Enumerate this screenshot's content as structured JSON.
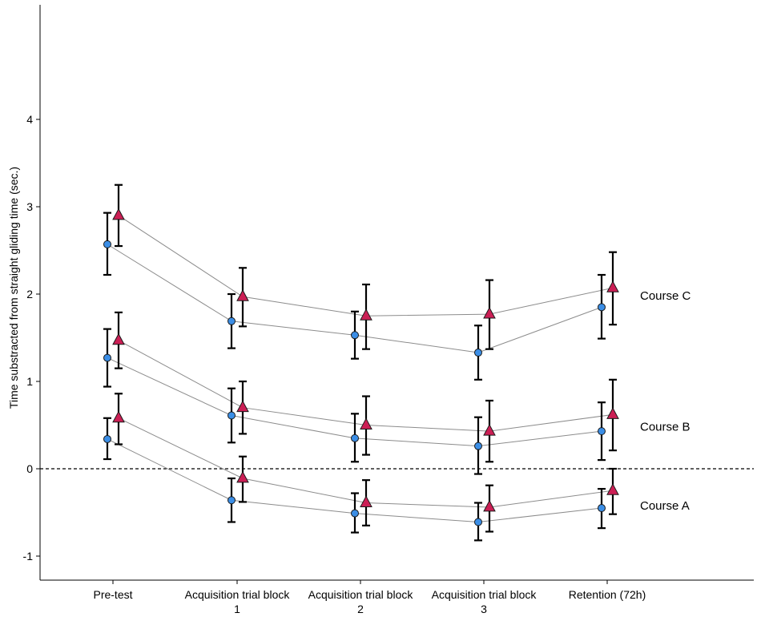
{
  "chart_data": {
    "type": "line",
    "title": "",
    "xlabel": "",
    "ylabel": "Time substracted from straight gliding time (sec.)",
    "ylim": [
      -1.3,
      5.2
    ],
    "yticks": [
      -1,
      0,
      1,
      2,
      3,
      4
    ],
    "grid": false,
    "reference_line": {
      "y": 0,
      "style": "dashed"
    },
    "categories": [
      [
        "Pre-test"
      ],
      [
        "Acquisition trial block",
        "1"
      ],
      [
        "Acquisition trial block",
        "2"
      ],
      [
        "Acquisition trial block",
        "3"
      ],
      [
        "Retention (72h)"
      ]
    ],
    "colors": {
      "circle": "#3b8ee6",
      "triangle": "#cc1f55",
      "line": "#8c8c8c",
      "errorbar": "#000000"
    },
    "series": [
      {
        "group": "Course A",
        "marker": "circle",
        "values": [
          0.34,
          -0.36,
          -0.51,
          -0.61,
          -0.45
        ],
        "err_low": [
          0.11,
          -0.61,
          -0.73,
          -0.82,
          -0.68
        ],
        "err_high": [
          0.58,
          -0.11,
          -0.28,
          -0.39,
          -0.23
        ]
      },
      {
        "group": "Course A",
        "marker": "triangle",
        "values": [
          0.58,
          -0.11,
          -0.39,
          -0.44,
          -0.25
        ],
        "err_low": [
          0.28,
          -0.38,
          -0.65,
          -0.72,
          -0.52
        ],
        "err_high": [
          0.86,
          0.14,
          -0.13,
          -0.19,
          0.0
        ]
      },
      {
        "group": "Course B",
        "marker": "circle",
        "values": [
          1.27,
          0.61,
          0.35,
          0.26,
          0.43
        ],
        "err_low": [
          0.94,
          0.3,
          0.08,
          -0.06,
          0.1
        ],
        "err_high": [
          1.6,
          0.92,
          0.63,
          0.59,
          0.76
        ]
      },
      {
        "group": "Course B",
        "marker": "triangle",
        "values": [
          1.47,
          0.7,
          0.5,
          0.43,
          0.62
        ],
        "err_low": [
          1.15,
          0.4,
          0.16,
          0.08,
          0.21
        ],
        "err_high": [
          1.79,
          1.0,
          0.83,
          0.78,
          1.02
        ]
      },
      {
        "group": "Course C",
        "marker": "circle",
        "values": [
          2.57,
          1.69,
          1.53,
          1.33,
          1.85
        ],
        "err_low": [
          2.22,
          1.38,
          1.26,
          1.02,
          1.49
        ],
        "err_high": [
          2.93,
          2.0,
          1.8,
          1.64,
          2.22
        ]
      },
      {
        "group": "Course C",
        "marker": "triangle",
        "values": [
          2.9,
          1.97,
          1.75,
          1.77,
          2.07
        ],
        "err_low": [
          2.55,
          1.63,
          1.37,
          1.37,
          1.65
        ],
        "err_high": [
          3.25,
          2.3,
          2.11,
          2.16,
          2.48
        ]
      }
    ],
    "annotations": [
      {
        "text": "Course C",
        "y": 1.98
      },
      {
        "text": "Course B",
        "y": 0.48
      },
      {
        "text": "Course A",
        "y": -0.42
      }
    ]
  }
}
